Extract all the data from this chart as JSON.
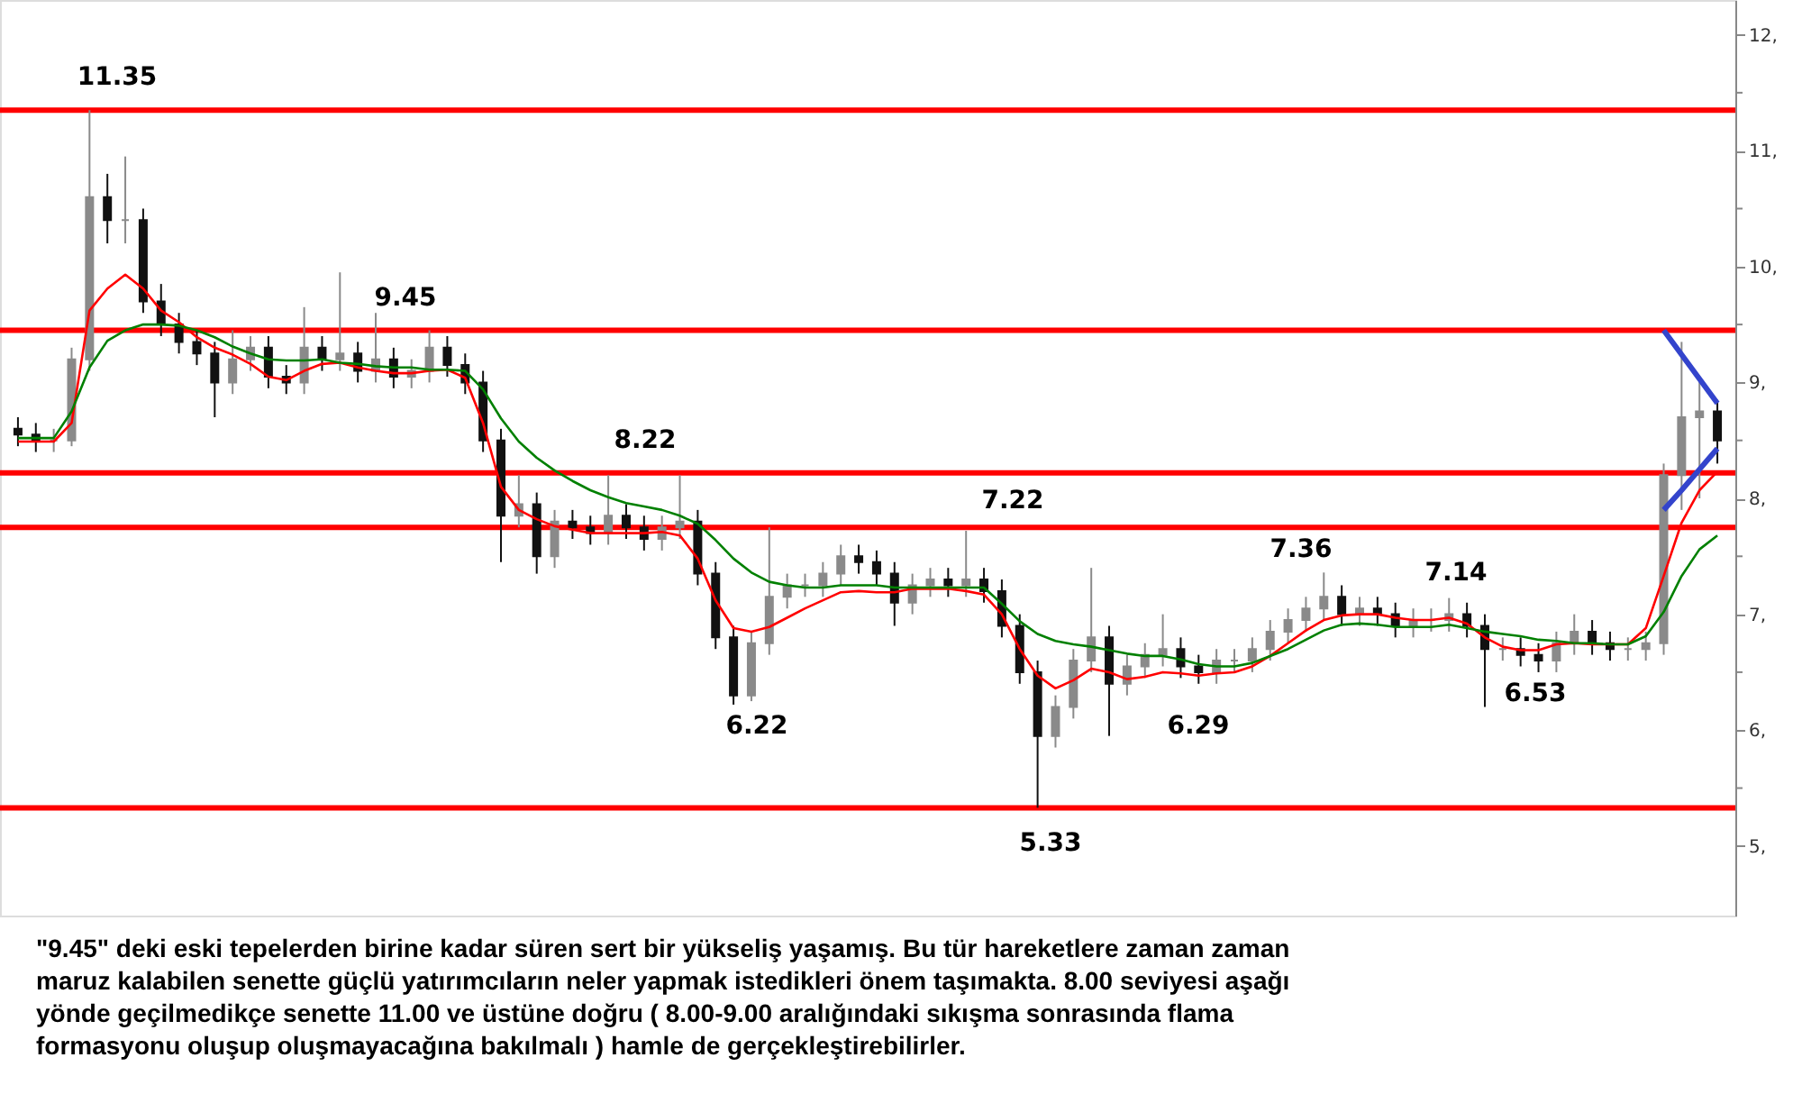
{
  "chart_data": {
    "type": "candlestick",
    "categories": [
      null,
      null,
      null,
      null,
      null,
      null,
      null,
      null,
      null,
      null,
      null,
      null,
      null,
      null,
      null,
      null,
      null,
      null,
      null,
      null,
      null,
      null,
      null,
      null,
      null,
      null,
      null,
      null,
      null,
      null,
      null,
      null,
      null,
      null,
      null,
      null,
      null,
      null,
      null,
      null,
      null,
      null,
      null,
      null,
      null,
      null,
      null,
      null,
      null,
      null,
      null,
      null,
      null,
      null,
      null,
      null,
      null,
      null,
      null,
      null,
      null,
      null,
      null,
      null,
      null,
      null,
      null,
      null,
      null,
      null,
      null,
      null,
      null,
      null,
      null,
      null,
      null,
      null,
      null,
      null,
      null,
      null,
      null,
      null,
      null,
      null,
      null,
      null,
      null,
      null,
      null,
      null,
      null,
      null,
      null,
      null
    ],
    "ohlc": [
      [
        8.6,
        8.7,
        8.45,
        8.55
      ],
      [
        8.55,
        8.65,
        8.4,
        8.5
      ],
      [
        8.5,
        8.6,
        8.4,
        8.5
      ],
      [
        8.5,
        9.3,
        8.45,
        9.2
      ],
      [
        9.2,
        11.35,
        9.1,
        10.6
      ],
      [
        10.6,
        10.8,
        10.2,
        10.4
      ],
      [
        10.4,
        10.95,
        10.2,
        10.4
      ],
      [
        10.4,
        10.5,
        9.6,
        9.7
      ],
      [
        9.7,
        9.85,
        9.4,
        9.5
      ],
      [
        9.5,
        9.6,
        9.25,
        9.35
      ],
      [
        9.35,
        9.45,
        9.15,
        9.25
      ],
      [
        9.25,
        9.35,
        8.7,
        9.0
      ],
      [
        9.0,
        9.45,
        8.9,
        9.2
      ],
      [
        9.2,
        9.4,
        9.1,
        9.3
      ],
      [
        9.3,
        9.4,
        8.95,
        9.05
      ],
      [
        9.05,
        9.15,
        8.9,
        9.0
      ],
      [
        9.0,
        9.65,
        8.9,
        9.3
      ],
      [
        9.3,
        9.4,
        9.1,
        9.2
      ],
      [
        9.2,
        9.95,
        9.1,
        9.25
      ],
      [
        9.25,
        9.35,
        9.0,
        9.1
      ],
      [
        9.1,
        9.6,
        9.0,
        9.2
      ],
      [
        9.2,
        9.3,
        8.95,
        9.05
      ],
      [
        9.05,
        9.2,
        8.95,
        9.1
      ],
      [
        9.1,
        9.45,
        9.0,
        9.3
      ],
      [
        9.3,
        9.4,
        9.05,
        9.15
      ],
      [
        9.15,
        9.25,
        8.9,
        9.0
      ],
      [
        9.0,
        9.1,
        8.4,
        8.5
      ],
      [
        8.5,
        8.6,
        7.45,
        7.85
      ],
      [
        7.85,
        8.2,
        7.75,
        7.95
      ],
      [
        7.95,
        8.05,
        7.35,
        7.5
      ],
      [
        7.5,
        7.9,
        7.4,
        7.8
      ],
      [
        7.8,
        7.9,
        7.65,
        7.75
      ],
      [
        7.75,
        7.85,
        7.6,
        7.7
      ],
      [
        7.7,
        8.2,
        7.6,
        7.85
      ],
      [
        7.85,
        7.95,
        7.65,
        7.75
      ],
      [
        7.75,
        7.85,
        7.55,
        7.65
      ],
      [
        7.65,
        7.85,
        7.55,
        7.75
      ],
      [
        7.75,
        8.2,
        7.65,
        7.8
      ],
      [
        7.8,
        7.9,
        7.25,
        7.35
      ],
      [
        7.35,
        7.45,
        6.7,
        6.8
      ],
      [
        6.8,
        6.9,
        6.22,
        6.3
      ],
      [
        6.3,
        6.85,
        6.25,
        6.75
      ],
      [
        6.75,
        7.75,
        6.65,
        7.15
      ],
      [
        7.15,
        7.35,
        7.05,
        7.25
      ],
      [
        7.25,
        7.35,
        7.15,
        7.25
      ],
      [
        7.25,
        7.45,
        7.15,
        7.35
      ],
      [
        7.35,
        7.6,
        7.25,
        7.5
      ],
      [
        7.5,
        7.6,
        7.35,
        7.45
      ],
      [
        7.45,
        7.55,
        7.25,
        7.35
      ],
      [
        7.35,
        7.45,
        6.9,
        7.1
      ],
      [
        7.1,
        7.35,
        7.0,
        7.25
      ],
      [
        7.25,
        7.4,
        7.15,
        7.3
      ],
      [
        7.3,
        7.4,
        7.15,
        7.25
      ],
      [
        7.25,
        7.72,
        7.15,
        7.3
      ],
      [
        7.3,
        7.4,
        7.1,
        7.2
      ],
      [
        7.2,
        7.3,
        6.8,
        6.9
      ],
      [
        6.9,
        7.0,
        6.4,
        6.5
      ],
      [
        6.5,
        6.6,
        5.33,
        5.95
      ],
      [
        5.95,
        6.3,
        5.85,
        6.2
      ],
      [
        6.2,
        6.7,
        6.1,
        6.6
      ],
      [
        6.6,
        7.4,
        6.5,
        6.8
      ],
      [
        6.8,
        6.9,
        5.95,
        6.4
      ],
      [
        6.4,
        6.65,
        6.3,
        6.55
      ],
      [
        6.55,
        6.75,
        6.45,
        6.65
      ],
      [
        6.65,
        7.0,
        6.55,
        6.7
      ],
      [
        6.7,
        6.8,
        6.45,
        6.55
      ],
      [
        6.55,
        6.65,
        6.4,
        6.5
      ],
      [
        6.5,
        6.7,
        6.4,
        6.6
      ],
      [
        6.6,
        6.7,
        6.5,
        6.6
      ],
      [
        6.6,
        6.8,
        6.5,
        6.7
      ],
      [
        6.7,
        6.95,
        6.6,
        6.85
      ],
      [
        6.85,
        7.05,
        6.75,
        6.95
      ],
      [
        6.95,
        7.15,
        6.85,
        7.05
      ],
      [
        7.05,
        7.36,
        6.95,
        7.15
      ],
      [
        7.15,
        7.25,
        6.9,
        7.0
      ],
      [
        7.0,
        7.15,
        6.9,
        7.05
      ],
      [
        7.05,
        7.15,
        6.9,
        7.0
      ],
      [
        7.0,
        7.1,
        6.8,
        6.9
      ],
      [
        6.9,
        7.05,
        6.8,
        6.95
      ],
      [
        6.95,
        7.05,
        6.85,
        6.95
      ],
      [
        6.95,
        7.14,
        6.85,
        7.0
      ],
      [
        7.0,
        7.1,
        6.8,
        6.9
      ],
      [
        6.9,
        7.0,
        6.2,
        6.7
      ],
      [
        6.7,
        6.8,
        6.6,
        6.7
      ],
      [
        6.7,
        6.8,
        6.55,
        6.65
      ],
      [
        6.65,
        6.75,
        6.5,
        6.6
      ],
      [
        6.6,
        6.85,
        6.5,
        6.75
      ],
      [
        6.75,
        7.0,
        6.65,
        6.85
      ],
      [
        6.85,
        6.95,
        6.65,
        6.75
      ],
      [
        6.75,
        6.85,
        6.6,
        6.7
      ],
      [
        6.7,
        6.8,
        6.6,
        6.7
      ],
      [
        6.7,
        6.85,
        6.6,
        6.75
      ],
      [
        6.75,
        8.3,
        6.65,
        8.2
      ],
      [
        8.2,
        9.35,
        7.9,
        8.7
      ],
      [
        8.7,
        9.05,
        8.0,
        8.75
      ],
      [
        8.75,
        8.85,
        8.3,
        8.5
      ]
    ],
    "series": [
      {
        "type": "line",
        "color": "#ff0000",
        "values": [
          8.49,
          8.49,
          8.49,
          8.65,
          9.62,
          9.81,
          9.93,
          9.81,
          9.62,
          9.52,
          9.39,
          9.3,
          9.24,
          9.16,
          9.05,
          9.02,
          9.1,
          9.16,
          9.17,
          9.13,
          9.1,
          9.08,
          9.08,
          9.1,
          9.11,
          9.04,
          8.65,
          8.1,
          7.9,
          7.82,
          7.76,
          7.73,
          7.7,
          7.7,
          7.7,
          7.7,
          7.71,
          7.68,
          7.48,
          7.12,
          6.88,
          6.85,
          6.89,
          6.97,
          7.05,
          7.12,
          7.19,
          7.2,
          7.19,
          7.19,
          7.22,
          7.22,
          7.22,
          7.2,
          7.17,
          7.0,
          6.7,
          6.47,
          6.36,
          6.43,
          6.53,
          6.5,
          6.44,
          6.46,
          6.5,
          6.49,
          6.47,
          6.49,
          6.5,
          6.55,
          6.64,
          6.75,
          6.86,
          6.95,
          6.99,
          7.0,
          7.0,
          6.97,
          6.95,
          6.95,
          6.97,
          6.92,
          6.8,
          6.72,
          6.69,
          6.69,
          6.74,
          6.75,
          6.74,
          6.74,
          6.74,
          6.88,
          7.33,
          7.79,
          8.07,
          8.23
        ]
      },
      {
        "type": "line",
        "color": "#008000",
        "values": [
          8.52,
          8.52,
          8.52,
          8.75,
          9.13,
          9.36,
          9.45,
          9.5,
          9.5,
          9.49,
          9.45,
          9.39,
          9.31,
          9.25,
          9.2,
          9.19,
          9.19,
          9.2,
          9.17,
          9.16,
          9.14,
          9.13,
          9.13,
          9.11,
          9.11,
          9.1,
          8.94,
          8.69,
          8.49,
          8.35,
          8.24,
          8.15,
          8.07,
          8.01,
          7.96,
          7.93,
          7.9,
          7.85,
          7.78,
          7.64,
          7.48,
          7.36,
          7.28,
          7.25,
          7.23,
          7.23,
          7.25,
          7.25,
          7.25,
          7.23,
          7.23,
          7.23,
          7.23,
          7.23,
          7.23,
          7.09,
          6.94,
          6.83,
          6.77,
          6.74,
          6.72,
          6.69,
          6.66,
          6.64,
          6.64,
          6.61,
          6.57,
          6.55,
          6.55,
          6.58,
          6.64,
          6.7,
          6.78,
          6.86,
          6.91,
          6.92,
          6.91,
          6.89,
          6.89,
          6.89,
          6.91,
          6.88,
          6.85,
          6.83,
          6.81,
          6.78,
          6.77,
          6.75,
          6.75,
          6.74,
          6.74,
          6.81,
          7.02,
          7.33,
          7.56,
          7.68
        ]
      },
      {
        "type": "line",
        "color": "#3344cc",
        "values": [
          null,
          null,
          null,
          null,
          null,
          null,
          null,
          null,
          null,
          null,
          null,
          null,
          null,
          null,
          null,
          null,
          null,
          null,
          null,
          null,
          null,
          null,
          null,
          null,
          null,
          null,
          null,
          null,
          null,
          null,
          null,
          null,
          null,
          null,
          null,
          null,
          null,
          null,
          null,
          null,
          null,
          null,
          null,
          null,
          null,
          null,
          null,
          null,
          null,
          null,
          null,
          null,
          null,
          null,
          null,
          null,
          null,
          null,
          null,
          null,
          null,
          null,
          null,
          null,
          null,
          null,
          null,
          null,
          null,
          null,
          null,
          null,
          null,
          null,
          null,
          null,
          null,
          null,
          null,
          null,
          null,
          null,
          null,
          null,
          null,
          null,
          null,
          null,
          null,
          null,
          null,
          null,
          9.45,
          9.24,
          9.03,
          8.82
        ]
      },
      {
        "type": "line",
        "color": "#3344cc",
        "values": [
          null,
          null,
          null,
          null,
          null,
          null,
          null,
          null,
          null,
          null,
          null,
          null,
          null,
          null,
          null,
          null,
          null,
          null,
          null,
          null,
          null,
          null,
          null,
          null,
          null,
          null,
          null,
          null,
          null,
          null,
          null,
          null,
          null,
          null,
          null,
          null,
          null,
          null,
          null,
          null,
          null,
          null,
          null,
          null,
          null,
          null,
          null,
          null,
          null,
          null,
          null,
          null,
          null,
          null,
          null,
          null,
          null,
          null,
          null,
          null,
          null,
          null,
          null,
          null,
          null,
          null,
          null,
          null,
          null,
          null,
          null,
          null,
          null,
          null,
          null,
          null,
          null,
          null,
          null,
          null,
          null,
          null,
          null,
          null,
          null,
          null,
          null,
          null,
          null,
          null,
          null,
          null,
          7.9,
          8.07,
          8.25,
          8.43
        ]
      }
    ],
    "ylim": [
      4.4,
      12.3
    ],
    "yticks": [
      {
        "value": 5,
        "label": "5,"
      },
      {
        "value": 5.5,
        "label": null
      },
      {
        "value": 6,
        "label": "6,"
      },
      {
        "value": 6.5,
        "label": null
      },
      {
        "value": 7,
        "label": "7,"
      },
      {
        "value": 7.5,
        "label": null
      },
      {
        "value": 8,
        "label": "8,"
      },
      {
        "value": 8.5,
        "label": null
      },
      {
        "value": 9,
        "label": "9,"
      },
      {
        "value": 9.5,
        "label": null
      },
      {
        "value": 10,
        "label": "10,"
      },
      {
        "value": 10.5,
        "label": null
      },
      {
        "value": 11,
        "label": "11,"
      },
      {
        "value": 11.5,
        "label": null
      },
      {
        "value": 12,
        "label": "12,"
      }
    ],
    "ref_lines": [
      {
        "axis": "y",
        "value": 11.35,
        "label": "11.35",
        "color": "#ff0000"
      },
      {
        "axis": "y",
        "value": 9.45,
        "label": "9.45",
        "color": "#ff0000"
      },
      {
        "axis": "y",
        "value": 8.22,
        "label": "8.22",
        "color": "#ff0000"
      },
      {
        "axis": "y",
        "value": 7.75,
        "color": "#ff0000"
      },
      {
        "axis": "y",
        "value": 5.33,
        "label": "5.33",
        "color": "#ff0000"
      }
    ],
    "annotations": [
      "7.22",
      "6.22",
      "6.29",
      "7.36",
      "7.14",
      "6.53",
      "\"9.45\" deki eski tepelerden birine kadar süren sert bir yükseliş yaşamış. Bu tür hareketlere zaman zaman maruz kalabilen senette güçlü yatırımcıların neler yapmak istedikleri önem taşımakta. 8.00 seviyesi aşağı yönde geçilmedikçe senette 11.00 ve üstüne doğru ( 8.00-9.00 aralığındaki sıkışma sonrasında flama formasyonu oluşup oluşmayacağına bakılmalı ) hamle de gerçekleştirebilirler."
    ],
    "tick_labels": "y",
    "grid": false,
    "line_style": "solid",
    "marker": "none"
  }
}
